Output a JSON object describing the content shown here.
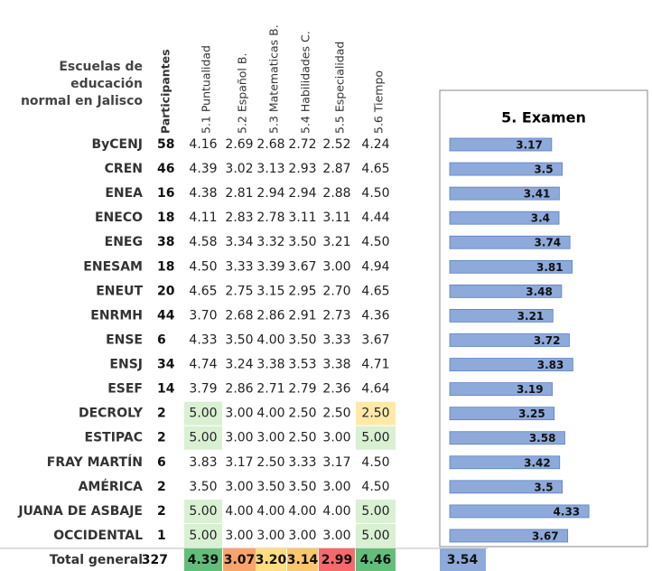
{
  "header": {
    "school": [
      "Escuelas de",
      "educación",
      "normal en Jalisco"
    ],
    "columns": [
      "Participantes",
      "5.1 Puntualidad",
      "5.2 Español B.",
      "5.3 Matematicas B.",
      "5.4 Habilidades C.",
      "5.5 Especialidad",
      "5.6 Tiempo"
    ],
    "exam": "5. Examen"
  },
  "bar_color": "#8eaadb",
  "rows": [
    {
      "school": "ByCENJ",
      "participants": 58,
      "scores": [
        "4.16",
        "2.69",
        "2.68",
        "2.72",
        "2.52",
        "4.24"
      ],
      "exam": 3.17
    },
    {
      "school": "CREN",
      "participants": 46,
      "scores": [
        "4.39",
        "3.02",
        "3.13",
        "2.93",
        "2.87",
        "4.65"
      ],
      "exam": 3.5
    },
    {
      "school": "ENEA",
      "participants": 16,
      "scores": [
        "4.38",
        "2.81",
        "2.94",
        "2.94",
        "2.88",
        "4.50"
      ],
      "exam": 3.41
    },
    {
      "school": "ENECO",
      "participants": 18,
      "scores": [
        "4.11",
        "2.83",
        "2.78",
        "3.11",
        "3.11",
        "4.44"
      ],
      "exam": 3.4
    },
    {
      "school": "ENEG",
      "participants": 38,
      "scores": [
        "4.58",
        "3.34",
        "3.32",
        "3.50",
        "3.21",
        "4.50"
      ],
      "exam": 3.74
    },
    {
      "school": "ENESAM",
      "participants": 18,
      "scores": [
        "4.50",
        "3.33",
        "3.39",
        "3.67",
        "3.00",
        "4.94"
      ],
      "exam": 3.81
    },
    {
      "school": "ENEUT",
      "participants": 20,
      "scores": [
        "4.65",
        "2.75",
        "3.15",
        "2.95",
        "2.70",
        "4.65"
      ],
      "exam": 3.48
    },
    {
      "school": "ENRMH",
      "participants": 44,
      "scores": [
        "3.70",
        "2.68",
        "2.86",
        "2.91",
        "2.73",
        "4.36"
      ],
      "exam": 3.21
    },
    {
      "school": "ENSE",
      "participants": 6,
      "scores": [
        "4.33",
        "3.50",
        "4.00",
        "3.50",
        "3.33",
        "3.67"
      ],
      "exam": 3.72
    },
    {
      "school": "ENSJ",
      "participants": 34,
      "scores": [
        "4.74",
        "3.24",
        "3.38",
        "3.53",
        "3.38",
        "4.71"
      ],
      "exam": 3.83
    },
    {
      "school": "ESEF",
      "participants": 14,
      "scores": [
        "3.79",
        "2.86",
        "2.71",
        "2.79",
        "2.36",
        "4.64"
      ],
      "exam": 3.19
    },
    {
      "school": "DECROLY",
      "participants": 2,
      "scores": [
        "5.00",
        "3.00",
        "4.00",
        "2.50",
        "2.50",
        "2.50"
      ],
      "exam": 3.25,
      "fills": [
        "#d9f0d3",
        null,
        null,
        null,
        null,
        "#ffe9a8"
      ]
    },
    {
      "school": "ESTIPAC",
      "participants": 2,
      "scores": [
        "5.00",
        "3.00",
        "3.00",
        "2.50",
        "3.00",
        "5.00"
      ],
      "exam": 3.58,
      "fills": [
        "#d9f0d3",
        null,
        null,
        null,
        null,
        "#d9f0d3"
      ]
    },
    {
      "school": "FRAY MARTÍN",
      "participants": 6,
      "scores": [
        "3.83",
        "3.17",
        "2.50",
        "3.33",
        "3.17",
        "4.50"
      ],
      "exam": 3.42
    },
    {
      "school": "AMÉRICA",
      "participants": 2,
      "scores": [
        "3.50",
        "3.00",
        "3.50",
        "3.50",
        "3.00",
        "4.50"
      ],
      "exam": 3.5
    },
    {
      "school": "JUANA DE ASBAJE",
      "participants": 2,
      "scores": [
        "5.00",
        "4.00",
        "4.00",
        "4.00",
        "4.00",
        "5.00"
      ],
      "exam": 4.33,
      "fills": [
        "#d9f0d3",
        null,
        null,
        null,
        null,
        "#d9f0d3"
      ]
    },
    {
      "school": "OCCIDENTAL",
      "participants": 1,
      "scores": [
        "5.00",
        "3.00",
        "3.00",
        "3.00",
        "3.00",
        "5.00"
      ],
      "exam": 3.67,
      "fills": [
        "#d9f0d3",
        null,
        null,
        null,
        null,
        "#d9f0d3"
      ]
    }
  ],
  "total": {
    "label": "Total general",
    "participants": 327,
    "scores": [
      "4.39",
      "3.07",
      "3.20",
      "3.14",
      "2.99",
      "4.46"
    ],
    "exam": 3.54,
    "fills": [
      "#63be7b",
      "#f9a46a",
      "#ffdd80",
      "#fcc66e",
      "#f8696b",
      "#63be7b"
    ],
    "exam_fill": "#8eaadb"
  }
}
